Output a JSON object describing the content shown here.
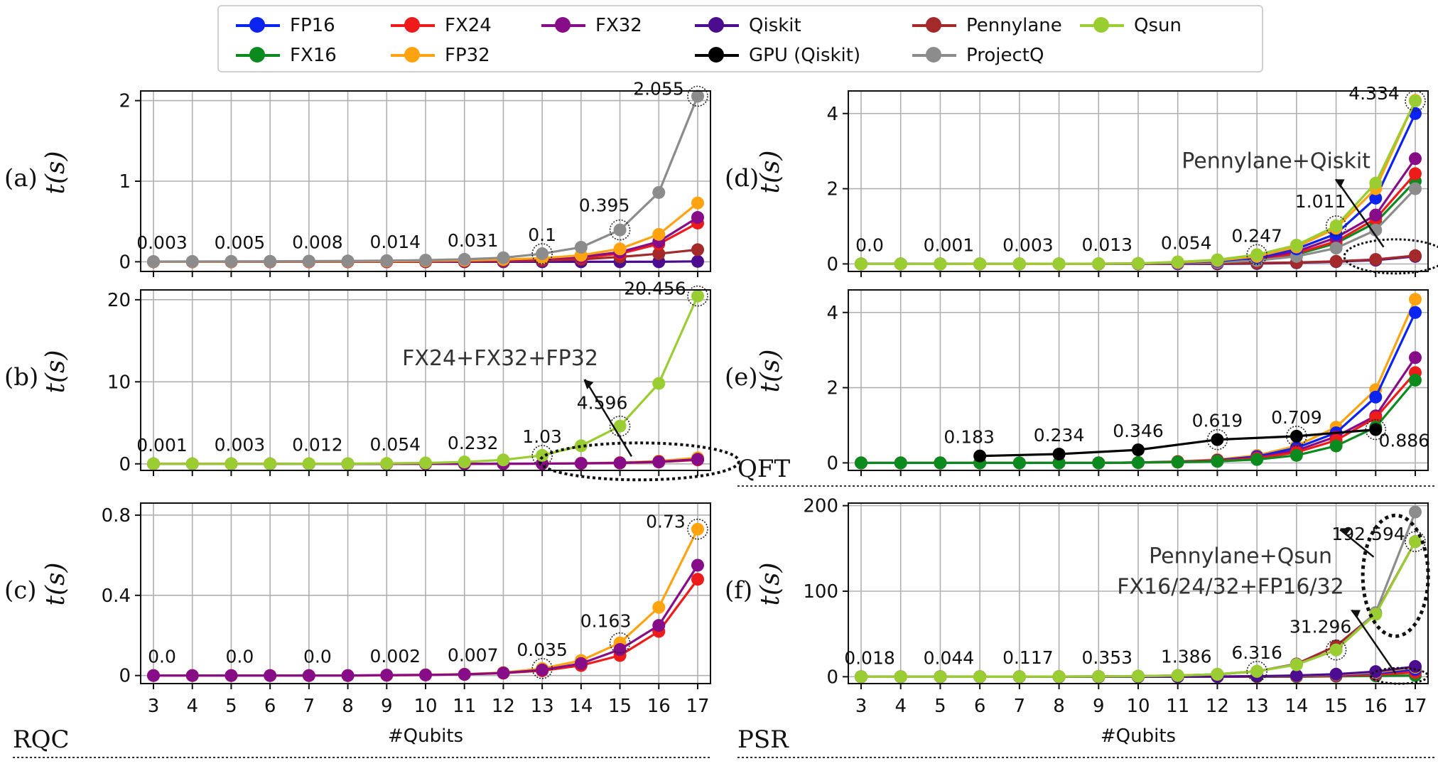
{
  "legend": [
    {
      "name": "FP16",
      "color": "#0a23f0"
    },
    {
      "name": "FX16",
      "color": "#0b8a1e"
    },
    {
      "name": "FX24",
      "color": "#ee1b1b"
    },
    {
      "name": "FP32",
      "color": "#ffa311"
    },
    {
      "name": "FX32",
      "color": "#870c87"
    },
    {
      "name": "Qiskit",
      "color": "#4b0c90"
    },
    {
      "name": "GPU (Qiskit)",
      "color": "#000000"
    },
    {
      "name": "Pennylane",
      "color": "#a3292b"
    },
    {
      "name": "ProjectQ",
      "color": "#8c8c8c"
    },
    {
      "name": "Qsun",
      "color": "#9acd32"
    }
  ],
  "section_labels": {
    "rqc": "RQC",
    "qft": "QFT",
    "psr": "PSR"
  },
  "xlabel": "#Qubits",
  "chart_data": [
    {
      "panel": "(a)",
      "type": "line",
      "ylabel": "t(s)",
      "xlabel": "",
      "x": [
        3,
        4,
        5,
        6,
        7,
        8,
        9,
        10,
        11,
        12,
        13,
        14,
        15,
        16,
        17
      ],
      "ylim": [
        -0.12,
        2.12
      ],
      "yticks": [
        0,
        1,
        2
      ],
      "ytick_labels": [
        "0",
        "1",
        "2"
      ],
      "series": [
        {
          "name": "Qiskit",
          "values": [
            0,
            0,
            0,
            0,
            0,
            0,
            0,
            0,
            0,
            0,
            0,
            0,
            0,
            0,
            0.005
          ]
        },
        {
          "name": "Pennylane",
          "values": [
            0,
            0,
            0,
            0,
            0,
            0,
            0,
            0,
            0.005,
            0.008,
            0.015,
            0.03,
            0.06,
            0.1,
            0.15
          ]
        },
        {
          "name": "FX24",
          "values": [
            0.001,
            0.001,
            0.001,
            0.002,
            0.002,
            0.003,
            0.005,
            0.008,
            0.012,
            0.02,
            0.03,
            0.05,
            0.1,
            0.22,
            0.48
          ]
        },
        {
          "name": "FX32",
          "values": [
            0.001,
            0.001,
            0.002,
            0.002,
            0.003,
            0.004,
            0.006,
            0.009,
            0.014,
            0.022,
            0.035,
            0.06,
            0.12,
            0.25,
            0.55
          ]
        },
        {
          "name": "FP32",
          "values": [
            0.001,
            0.001,
            0.002,
            0.003,
            0.004,
            0.005,
            0.008,
            0.012,
            0.018,
            0.028,
            0.045,
            0.08,
            0.16,
            0.34,
            0.73
          ]
        },
        {
          "name": "ProjectQ",
          "values": [
            0.003,
            0.004,
            0.005,
            0.006,
            0.008,
            0.01,
            0.014,
            0.02,
            0.031,
            0.05,
            0.1,
            0.18,
            0.395,
            0.86,
            2.055
          ]
        }
      ],
      "annotations": [
        "0.003",
        "0.005",
        "0.008",
        "0.014",
        "0.031",
        "0.1",
        "0.395",
        "2.055"
      ]
    },
    {
      "panel": "(b)",
      "type": "line",
      "ylabel": "t(s)",
      "xlabel": "",
      "x": [
        3,
        4,
        5,
        6,
        7,
        8,
        9,
        10,
        11,
        12,
        13,
        14,
        15,
        16,
        17
      ],
      "ylim": [
        -0.8,
        21.2
      ],
      "yticks": [
        0,
        10,
        20
      ],
      "ytick_labels": [
        "0",
        "10",
        "20"
      ],
      "series": [
        {
          "name": "FX24",
          "values": [
            0,
            0,
            0,
            0,
            0,
            0,
            0,
            0,
            0,
            0.01,
            0.02,
            0.05,
            0.1,
            0.22,
            0.48
          ]
        },
        {
          "name": "FP32",
          "values": [
            0,
            0,
            0,
            0,
            0,
            0,
            0,
            0,
            0,
            0.01,
            0.03,
            0.08,
            0.16,
            0.34,
            0.73
          ]
        },
        {
          "name": "FX32",
          "values": [
            0,
            0,
            0,
            0,
            0,
            0,
            0,
            0,
            0,
            0.01,
            0.02,
            0.06,
            0.12,
            0.25,
            0.55
          ]
        },
        {
          "name": "Qsun",
          "values": [
            0.001,
            0.002,
            0.003,
            0.006,
            0.012,
            0.025,
            0.054,
            0.11,
            0.232,
            0.48,
            1.03,
            2.2,
            4.596,
            9.8,
            20.456
          ]
        }
      ],
      "annotations": [
        "0.001",
        "0.003",
        "0.012",
        "0.054",
        "0.232",
        "1.03",
        "4.596",
        "20.456"
      ],
      "callout": "FX24+FX32+FP32"
    },
    {
      "panel": "(c)",
      "type": "line",
      "ylabel": "t(s)",
      "xlabel": "#Qubits",
      "x": [
        3,
        4,
        5,
        6,
        7,
        8,
        9,
        10,
        11,
        12,
        13,
        14,
        15,
        16,
        17
      ],
      "ylim": [
        -0.04,
        0.86
      ],
      "yticks": [
        0,
        0.4,
        0.8
      ],
      "ytick_labels": [
        "0",
        "0.4",
        "0.8"
      ],
      "series": [
        {
          "name": "FX24",
          "values": [
            0,
            0,
            0,
            0,
            0,
            0,
            0.001,
            0.003,
            0.006,
            0.012,
            0.024,
            0.05,
            0.1,
            0.22,
            0.48
          ]
        },
        {
          "name": "FP32",
          "values": [
            0,
            0,
            0,
            0,
            0,
            0,
            0.002,
            0.004,
            0.007,
            0.015,
            0.035,
            0.075,
            0.163,
            0.34,
            0.73
          ]
        },
        {
          "name": "FX32",
          "values": [
            0,
            0,
            0,
            0,
            0,
            0,
            0.002,
            0.003,
            0.006,
            0.013,
            0.028,
            0.06,
            0.13,
            0.25,
            0.55
          ]
        }
      ],
      "annotations": [
        "0.0",
        "0.0",
        "0.0",
        "0.002",
        "0.007",
        "0.035",
        "0.163",
        "0.73"
      ]
    },
    {
      "panel": "(d)",
      "type": "line",
      "ylabel": "t(s)",
      "xlabel": "",
      "x": [
        3,
        4,
        5,
        6,
        7,
        8,
        9,
        10,
        11,
        12,
        13,
        14,
        15,
        16,
        17
      ],
      "ylim": [
        -0.2,
        4.6
      ],
      "yticks": [
        0,
        2,
        4
      ],
      "ytick_labels": [
        "0",
        "2",
        "4"
      ],
      "series": [
        {
          "name": "Qiskit",
          "values": [
            0,
            0,
            0,
            0,
            0,
            0,
            0,
            0,
            0,
            0,
            0.01,
            0.03,
            0.06,
            0.1,
            0.2
          ]
        },
        {
          "name": "Pennylane",
          "values": [
            0,
            0,
            0,
            0,
            0,
            0,
            0,
            0,
            0.01,
            0.015,
            0.025,
            0.04,
            0.07,
            0.12,
            0.22
          ]
        },
        {
          "name": "FX16",
          "values": [
            0,
            0,
            0,
            0,
            0,
            0,
            0,
            0.01,
            0.02,
            0.05,
            0.11,
            0.25,
            0.55,
            1.1,
            2.2
          ]
        },
        {
          "name": "FX24",
          "values": [
            0,
            0,
            0,
            0,
            0,
            0,
            0,
            0.01,
            0.02,
            0.05,
            0.12,
            0.28,
            0.6,
            1.2,
            2.4
          ]
        },
        {
          "name": "FX32",
          "values": [
            0,
            0,
            0,
            0,
            0,
            0,
            0,
            0.01,
            0.03,
            0.06,
            0.14,
            0.33,
            0.7,
            1.3,
            2.8
          ]
        },
        {
          "name": "ProjectQ",
          "values": [
            0,
            0,
            0,
            0,
            0,
            0,
            0,
            0.01,
            0.02,
            0.04,
            0.09,
            0.2,
            0.42,
            0.9,
            2.0
          ]
        },
        {
          "name": "FP16",
          "values": [
            0,
            0,
            0,
            0,
            0,
            0,
            0.005,
            0.01,
            0.03,
            0.07,
            0.17,
            0.4,
            0.8,
            1.75,
            4.0
          ]
        },
        {
          "name": "FP32",
          "values": [
            0,
            0,
            0,
            0,
            0,
            0,
            0.005,
            0.012,
            0.04,
            0.09,
            0.2,
            0.45,
            0.95,
            2.0,
            4.35
          ]
        },
        {
          "name": "Qsun",
          "values": [
            0,
            0,
            0.001,
            0.002,
            0.003,
            0.005,
            0.008,
            0.013,
            0.054,
            0.11,
            0.247,
            0.5,
            1.011,
            2.15,
            4.334
          ]
        }
      ],
      "annotations": [
        "0.0",
        "0.001",
        "0.003",
        "0.013",
        "0.054",
        "0.247",
        "1.011",
        "4.334"
      ],
      "callout": "Pennylane+Qiskit"
    },
    {
      "panel": "(e)",
      "type": "line",
      "ylabel": "t(s)",
      "xlabel": "",
      "x": [
        3,
        4,
        5,
        6,
        7,
        8,
        9,
        10,
        11,
        12,
        13,
        14,
        15,
        16,
        17
      ],
      "ylim": [
        -0.2,
        4.6
      ],
      "yticks": [
        0,
        2,
        4
      ],
      "ytick_labels": [
        "0",
        "2",
        "4"
      ],
      "series": [
        {
          "name": "FP32",
          "values": [
            0,
            0,
            0,
            0,
            0,
            0,
            0,
            0.01,
            0.04,
            0.09,
            0.2,
            0.45,
            0.95,
            1.95,
            4.35
          ]
        },
        {
          "name": "FP16",
          "values": [
            0,
            0,
            0,
            0,
            0,
            0,
            0,
            0.01,
            0.03,
            0.07,
            0.17,
            0.4,
            0.8,
            1.75,
            4.0
          ]
        },
        {
          "name": "FX32",
          "values": [
            0,
            0,
            0,
            0,
            0,
            0,
            0,
            0.01,
            0.03,
            0.06,
            0.14,
            0.33,
            0.7,
            1.25,
            2.8
          ]
        },
        {
          "name": "FX24",
          "values": [
            0,
            0,
            0,
            0,
            0,
            0,
            0,
            0.01,
            0.02,
            0.05,
            0.12,
            0.28,
            0.6,
            1.2,
            2.4
          ]
        },
        {
          "name": "FX16",
          "values": [
            0,
            0,
            0,
            0,
            0,
            0,
            0,
            0.01,
            0.02,
            0.04,
            0.09,
            0.2,
            0.45,
            0.95,
            2.2
          ]
        },
        {
          "name": "GPU (Qiskit)",
          "x": [
            6,
            8,
            10,
            12,
            14,
            16
          ],
          "values": [
            0.183,
            0.234,
            0.346,
            0.619,
            0.709,
            0.886
          ]
        }
      ],
      "annotations": [
        "0.183",
        "0.234",
        "0.346",
        "0.619",
        "0.709",
        "0.886"
      ]
    },
    {
      "panel": "(f)",
      "type": "line",
      "ylabel": "t(s)",
      "xlabel": "#Qubits",
      "x": [
        3,
        4,
        5,
        6,
        7,
        8,
        9,
        10,
        11,
        12,
        13,
        14,
        15,
        16,
        17
      ],
      "ylim": [
        -8,
        203
      ],
      "yticks": [
        0,
        100,
        200
      ],
      "ytick_labels": [
        "0",
        "100",
        "200"
      ],
      "series": [
        {
          "name": "FX16",
          "values": [
            0,
            0,
            0,
            0,
            0,
            0,
            0,
            0,
            0,
            0,
            0,
            0,
            0.5,
            1,
            1.5
          ]
        },
        {
          "name": "FX24",
          "values": [
            0,
            0,
            0,
            0,
            0,
            0,
            0,
            0,
            0,
            0,
            0.2,
            0.5,
            1,
            2.5,
            5
          ]
        },
        {
          "name": "FX32",
          "values": [
            0,
            0,
            0,
            0,
            0,
            0,
            0,
            0,
            0,
            0,
            0.5,
            1,
            2,
            4,
            8
          ]
        },
        {
          "name": "FP16",
          "values": [
            0,
            0,
            0,
            0,
            0,
            0,
            0,
            0,
            0,
            0.2,
            0.5,
            1,
            2,
            4,
            9
          ]
        },
        {
          "name": "FP32",
          "values": [
            0,
            0,
            0,
            0,
            0,
            0,
            0,
            0,
            0,
            0.2,
            0.5,
            1.2,
            2.5,
            5,
            11
          ]
        },
        {
          "name": "Qiskit",
          "values": [
            0,
            0,
            0,
            0,
            0,
            0,
            0,
            0,
            0,
            0.2,
            0.6,
            1.5,
            3,
            6,
            12
          ]
        },
        {
          "name": "Pennylane",
          "values": [
            0.02,
            0.04,
            0.06,
            0.1,
            0.15,
            0.25,
            0.4,
            0.7,
            1.4,
            2.8,
            6.316,
            15,
            36,
            74,
            158
          ]
        },
        {
          "name": "ProjectQ",
          "values": [
            0.02,
            0.04,
            0.06,
            0.1,
            0.15,
            0.25,
            0.4,
            0.7,
            1.4,
            2.9,
            6.316,
            14.5,
            31.296,
            75,
            192.594
          ]
        },
        {
          "name": "Qsun",
          "values": [
            0.018,
            0.03,
            0.044,
            0.07,
            0.117,
            0.2,
            0.353,
            0.7,
            1.386,
            2.9,
            6.316,
            14,
            31.296,
            73,
            158
          ]
        }
      ],
      "annotations": [
        "0.018",
        "0.044",
        "0.117",
        "0.353",
        "1.386",
        "6.316",
        "31.296",
        "192.594"
      ],
      "callouts": [
        "Pennylane+Qsun",
        "FX16/24/32+FP16/32"
      ]
    }
  ]
}
